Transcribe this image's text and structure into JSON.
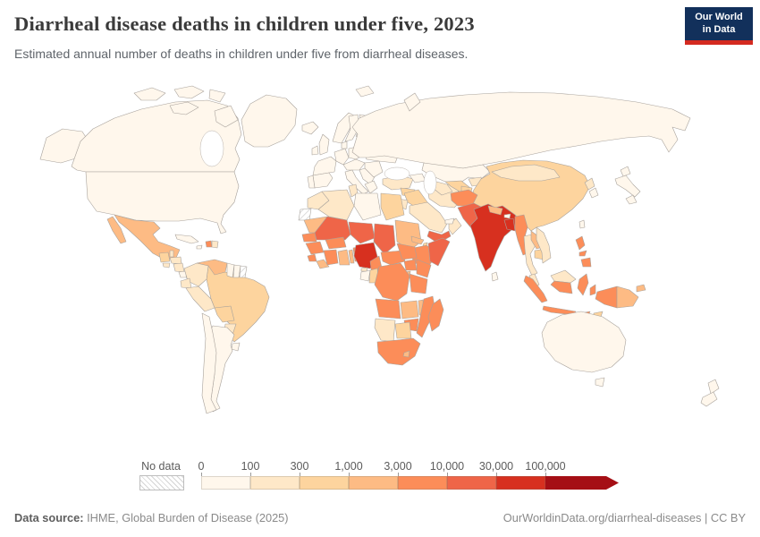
{
  "header": {
    "title": "Diarrheal disease deaths in children under five, 2023",
    "subtitle": "Estimated annual number of deaths in children under five from diarrheal diseases.",
    "logo": {
      "line1": "Our World",
      "line2": "in Data"
    }
  },
  "legend": {
    "no_data_label": "No data",
    "tick_labels": [
      "0",
      "100",
      "300",
      "1,000",
      "3,000",
      "10,000",
      "30,000",
      "100,000"
    ]
  },
  "footer": {
    "source_label": "Data source:",
    "source_value": " IHME, Global Burden of Disease (2025)",
    "attribution": "OurWorldinData.org/diarrheal-diseases | CC BY"
  },
  "chart_data": {
    "type": "heatmap",
    "subtype": "world-choropleth",
    "title": "Diarrheal disease deaths in children under five, 2023",
    "unit": "deaths per year",
    "year": "2023",
    "legend_position": "bottom",
    "no_data_style": "diagonal-hatch",
    "bins": [
      {
        "label_start": "0",
        "range": "0-100",
        "color": "#fff7ec"
      },
      {
        "label_start": "100",
        "range": "100-300",
        "color": "#fee8c8"
      },
      {
        "label_start": "300",
        "range": "300-1,000",
        "color": "#fdd49e"
      },
      {
        "label_start": "1,000",
        "range": "1,000-3,000",
        "color": "#fdbb84"
      },
      {
        "label_start": "3,000",
        "range": "3,000-10,000",
        "color": "#fc8d59"
      },
      {
        "label_start": "10,000",
        "range": "10,000-30,000",
        "color": "#ef6548"
      },
      {
        "label_start": "30,000",
        "range": "30,000-100,000",
        "color": "#d7301f"
      },
      {
        "label_start": "100,000",
        "range": "100,000+",
        "color": "#a50f15"
      }
    ],
    "countries": {
      "canada": 1,
      "usa": 1,
      "alaska": 1,
      "greenland": 1,
      "arctic-islands": 1,
      "iceland": 1,
      "mexico": 4,
      "baja": 4,
      "guatemala": 3,
      "belize": 2,
      "honduras": 2,
      "el-salvador": 2,
      "nicaragua": 2,
      "costa-rica": 1,
      "panama": 2,
      "cuba": 1,
      "jamaica": 1,
      "haiti": 5,
      "dominican-republic": 2,
      "colombia": 2,
      "venezuela": 4,
      "guyana": 1,
      "suriname": 1,
      "french-guiana": "nd",
      "ecuador": 2,
      "peru": 2,
      "brazil": 3,
      "bolivia": 3,
      "paraguay": 2,
      "uruguay": 1,
      "argentina": 1,
      "chile": 1,
      "united-kingdom": 1,
      "ireland": 1,
      "portugal": 1,
      "spain": 1,
      "france": 1,
      "germany": 1,
      "denmark": 1,
      "norway": 1,
      "sweden": 1,
      "finland": 1,
      "baltics": 1,
      "poland": 1,
      "central-europe": 1,
      "italy": 1,
      "balkans": 1,
      "greece": 1,
      "romania": 1,
      "ukraine": 1,
      "belarus": 1,
      "russia": 1,
      "svalbard": 1,
      "novaya-zemlya": 1,
      "caucasus": 1,
      "turkey": 2,
      "morocco": 2,
      "western-sahara": "nd",
      "algeria": 2,
      "tunisia": 2,
      "libya": 1,
      "egypt": 3,
      "mauritania": 4,
      "senegal": 5,
      "guinea": 5,
      "sierra-leone": 5,
      "liberia": 4,
      "cote-divoire": 5,
      "ghana": 4,
      "togo": 4,
      "benin": 5,
      "burkina-faso": 5,
      "mali": 6,
      "niger": 6,
      "nigeria": 7,
      "chad": 6,
      "sudan": 4,
      "eritrea": 4,
      "djibouti": 3,
      "ethiopia": 5,
      "somalia": 6,
      "cameroon": 5,
      "central-african-republic": 5,
      "south-sudan": 5,
      "uganda": 5,
      "kenya": 5,
      "rwanda-burundi": 4,
      "gabon": 1,
      "equatorial-guinea": 2,
      "congo": 3,
      "dr-congo": 5,
      "tanzania": 5,
      "angola": 5,
      "zambia": 4,
      "malawi": 4,
      "mozambique": 5,
      "zimbabwe": 5,
      "botswana": 3,
      "namibia": 2,
      "south-africa": 5,
      "lesotho": 4,
      "madagascar": 5,
      "syria": 3,
      "iraq": 3,
      "jordan-israel": 2,
      "saudi-arabia": 2,
      "yemen": 6,
      "oman": 2,
      "uae": 1,
      "iran": 2,
      "kazakhstan": 1,
      "turkmenistan": 2,
      "uzbekistan": 3,
      "kyrgyzstan": 2,
      "tajikistan": 3,
      "afghanistan": 5,
      "pakistan": 6,
      "india": 7,
      "nepal": 4,
      "bhutan": 1,
      "bangladesh": 7,
      "sri-lanka": 1,
      "myanmar": 5,
      "thailand": 2,
      "laos": 4,
      "cambodia": 3,
      "vietnam": 2,
      "china": 3,
      "mongolia": 2,
      "north-korea": 2,
      "south-korea": 1,
      "japan-hokkaido": 1,
      "japan-honshu": 1,
      "japan-kyushu": 1,
      "taiwan": 1,
      "philippines-luzon": 5,
      "philippines-visayas": 5,
      "philippines-mindanao": 5,
      "malaysia": 2,
      "malaysia-borneo": 2,
      "sumatra": 5,
      "java": 5,
      "kalimantan": 5,
      "sulawesi": 5,
      "moluccas": 5,
      "lesser-sunda": 5,
      "timor": 3,
      "west-papua": 5,
      "papua-new-guinea": 4,
      "new-britain": 4,
      "australia": 1,
      "tasmania": 1,
      "new-zealand-north": 1,
      "new-zealand-south": 1
    }
  }
}
